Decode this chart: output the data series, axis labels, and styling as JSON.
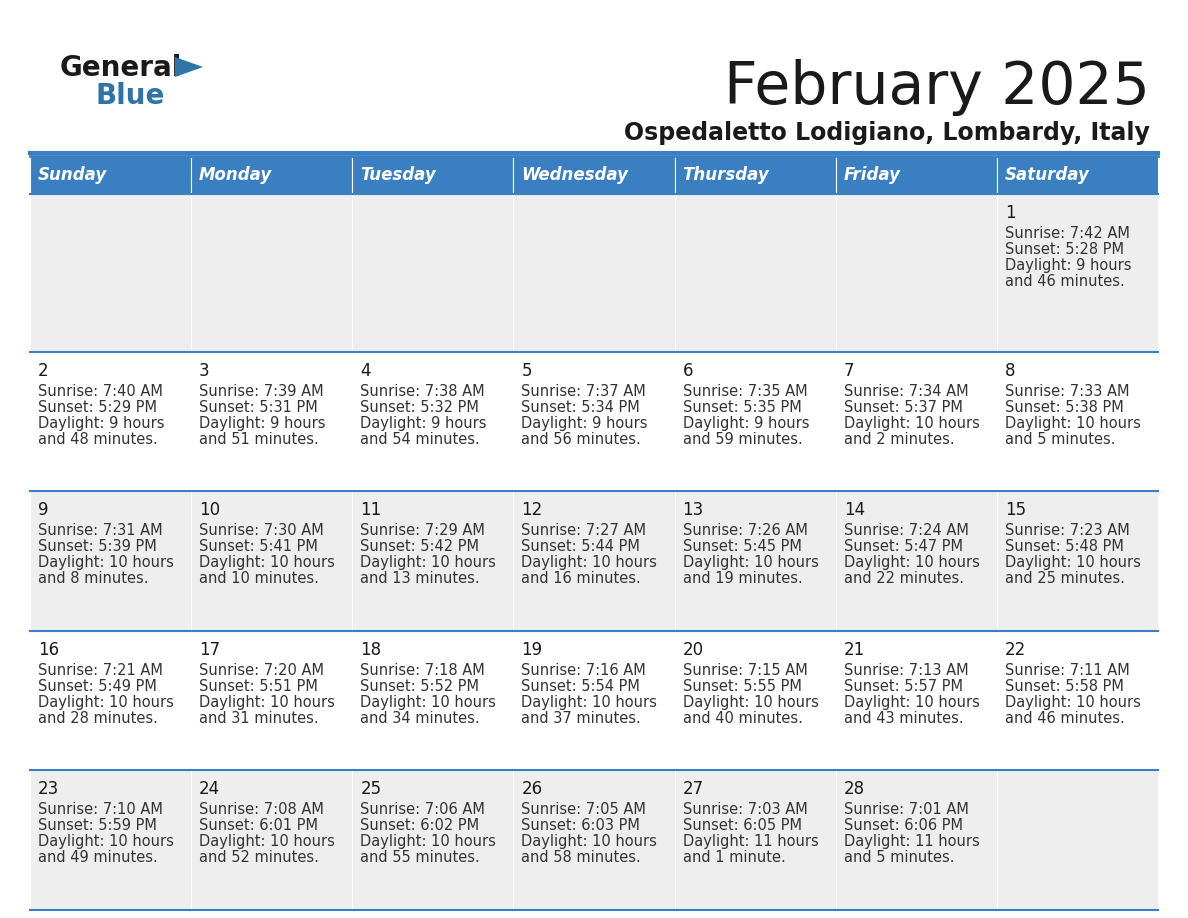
{
  "title": "February 2025",
  "subtitle": "Ospedaletto Lodigiano, Lombardy, Italy",
  "header_bg_color": "#3A7FC1",
  "header_text_color": "#FFFFFF",
  "weekdays": [
    "Sunday",
    "Monday",
    "Tuesday",
    "Wednesday",
    "Thursday",
    "Friday",
    "Saturday"
  ],
  "row_odd_bg": "#EEEEEE",
  "row_even_bg": "#FFFFFF",
  "cell_text_color": "#333333",
  "day_num_color": "#1a1a1a",
  "border_color": "#3A7FC1",
  "title_color": "#1a1a1a",
  "subtitle_color": "#1a1a1a",
  "logo_general_color": "#1a1a1a",
  "logo_blue_color": "#2E74A8",
  "logo_triangle_color": "#2E74A8",
  "calendar": [
    [
      null,
      null,
      null,
      null,
      null,
      null,
      {
        "day": "1",
        "sunrise": "7:42 AM",
        "sunset": "5:28 PM",
        "daylight_line1": "Daylight: 9 hours",
        "daylight_line2": "and 46 minutes."
      }
    ],
    [
      {
        "day": "2",
        "sunrise": "7:40 AM",
        "sunset": "5:29 PM",
        "daylight_line1": "Daylight: 9 hours",
        "daylight_line2": "and 48 minutes."
      },
      {
        "day": "3",
        "sunrise": "7:39 AM",
        "sunset": "5:31 PM",
        "daylight_line1": "Daylight: 9 hours",
        "daylight_line2": "and 51 minutes."
      },
      {
        "day": "4",
        "sunrise": "7:38 AM",
        "sunset": "5:32 PM",
        "daylight_line1": "Daylight: 9 hours",
        "daylight_line2": "and 54 minutes."
      },
      {
        "day": "5",
        "sunrise": "7:37 AM",
        "sunset": "5:34 PM",
        "daylight_line1": "Daylight: 9 hours",
        "daylight_line2": "and 56 minutes."
      },
      {
        "day": "6",
        "sunrise": "7:35 AM",
        "sunset": "5:35 PM",
        "daylight_line1": "Daylight: 9 hours",
        "daylight_line2": "and 59 minutes."
      },
      {
        "day": "7",
        "sunrise": "7:34 AM",
        "sunset": "5:37 PM",
        "daylight_line1": "Daylight: 10 hours",
        "daylight_line2": "and 2 minutes."
      },
      {
        "day": "8",
        "sunrise": "7:33 AM",
        "sunset": "5:38 PM",
        "daylight_line1": "Daylight: 10 hours",
        "daylight_line2": "and 5 minutes."
      }
    ],
    [
      {
        "day": "9",
        "sunrise": "7:31 AM",
        "sunset": "5:39 PM",
        "daylight_line1": "Daylight: 10 hours",
        "daylight_line2": "and 8 minutes."
      },
      {
        "day": "10",
        "sunrise": "7:30 AM",
        "sunset": "5:41 PM",
        "daylight_line1": "Daylight: 10 hours",
        "daylight_line2": "and 10 minutes."
      },
      {
        "day": "11",
        "sunrise": "7:29 AM",
        "sunset": "5:42 PM",
        "daylight_line1": "Daylight: 10 hours",
        "daylight_line2": "and 13 minutes."
      },
      {
        "day": "12",
        "sunrise": "7:27 AM",
        "sunset": "5:44 PM",
        "daylight_line1": "Daylight: 10 hours",
        "daylight_line2": "and 16 minutes."
      },
      {
        "day": "13",
        "sunrise": "7:26 AM",
        "sunset": "5:45 PM",
        "daylight_line1": "Daylight: 10 hours",
        "daylight_line2": "and 19 minutes."
      },
      {
        "day": "14",
        "sunrise": "7:24 AM",
        "sunset": "5:47 PM",
        "daylight_line1": "Daylight: 10 hours",
        "daylight_line2": "and 22 minutes."
      },
      {
        "day": "15",
        "sunrise": "7:23 AM",
        "sunset": "5:48 PM",
        "daylight_line1": "Daylight: 10 hours",
        "daylight_line2": "and 25 minutes."
      }
    ],
    [
      {
        "day": "16",
        "sunrise": "7:21 AM",
        "sunset": "5:49 PM",
        "daylight_line1": "Daylight: 10 hours",
        "daylight_line2": "and 28 minutes."
      },
      {
        "day": "17",
        "sunrise": "7:20 AM",
        "sunset": "5:51 PM",
        "daylight_line1": "Daylight: 10 hours",
        "daylight_line2": "and 31 minutes."
      },
      {
        "day": "18",
        "sunrise": "7:18 AM",
        "sunset": "5:52 PM",
        "daylight_line1": "Daylight: 10 hours",
        "daylight_line2": "and 34 minutes."
      },
      {
        "day": "19",
        "sunrise": "7:16 AM",
        "sunset": "5:54 PM",
        "daylight_line1": "Daylight: 10 hours",
        "daylight_line2": "and 37 minutes."
      },
      {
        "day": "20",
        "sunrise": "7:15 AM",
        "sunset": "5:55 PM",
        "daylight_line1": "Daylight: 10 hours",
        "daylight_line2": "and 40 minutes."
      },
      {
        "day": "21",
        "sunrise": "7:13 AM",
        "sunset": "5:57 PM",
        "daylight_line1": "Daylight: 10 hours",
        "daylight_line2": "and 43 minutes."
      },
      {
        "day": "22",
        "sunrise": "7:11 AM",
        "sunset": "5:58 PM",
        "daylight_line1": "Daylight: 10 hours",
        "daylight_line2": "and 46 minutes."
      }
    ],
    [
      {
        "day": "23",
        "sunrise": "7:10 AM",
        "sunset": "5:59 PM",
        "daylight_line1": "Daylight: 10 hours",
        "daylight_line2": "and 49 minutes."
      },
      {
        "day": "24",
        "sunrise": "7:08 AM",
        "sunset": "6:01 PM",
        "daylight_line1": "Daylight: 10 hours",
        "daylight_line2": "and 52 minutes."
      },
      {
        "day": "25",
        "sunrise": "7:06 AM",
        "sunset": "6:02 PM",
        "daylight_line1": "Daylight: 10 hours",
        "daylight_line2": "and 55 minutes."
      },
      {
        "day": "26",
        "sunrise": "7:05 AM",
        "sunset": "6:03 PM",
        "daylight_line1": "Daylight: 10 hours",
        "daylight_line2": "and 58 minutes."
      },
      {
        "day": "27",
        "sunrise": "7:03 AM",
        "sunset": "6:05 PM",
        "daylight_line1": "Daylight: 11 hours",
        "daylight_line2": "and 1 minute."
      },
      {
        "day": "28",
        "sunrise": "7:01 AM",
        "sunset": "6:06 PM",
        "daylight_line1": "Daylight: 11 hours",
        "daylight_line2": "and 5 minutes."
      },
      null
    ]
  ]
}
